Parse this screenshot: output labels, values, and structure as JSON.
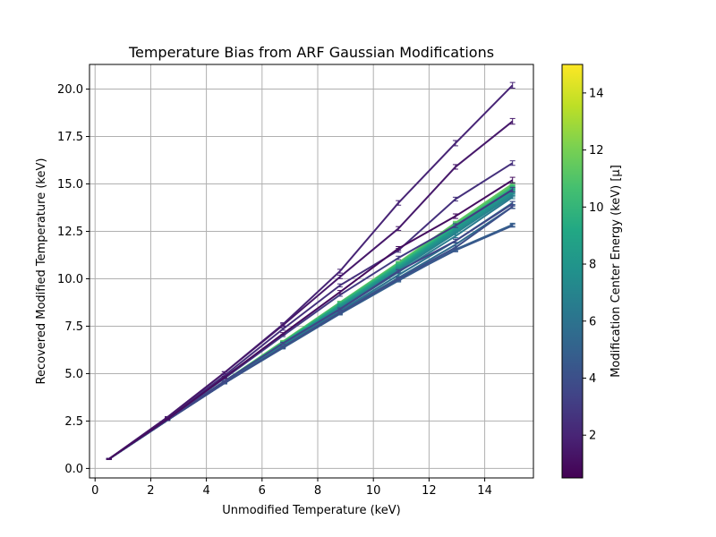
{
  "chart_data": {
    "type": "line",
    "title": "Temperature Bias from ARF Gaussian Modifications",
    "xlabel": "Unmodified Temperature (keV)",
    "ylabel": "Recovered Modified Temperature (keV)",
    "xlim": [
      -0.2,
      15.75
    ],
    "ylim": [
      -0.5,
      21.3
    ],
    "xticks": [
      0,
      2,
      4,
      6,
      8,
      10,
      12,
      14
    ],
    "yticks": [
      0.0,
      2.5,
      5.0,
      7.5,
      10.0,
      12.5,
      15.0,
      17.5,
      20.0
    ],
    "grid": true,
    "x": [
      0.5,
      2.6,
      4.65,
      6.75,
      8.8,
      10.9,
      12.95,
      15.0
    ],
    "series": [
      {
        "mu": 1.0,
        "values": [
          0.5,
          2.6,
          4.8,
          7.1,
          9.3,
          11.6,
          13.3,
          15.2
        ],
        "err": [
          0.02,
          0.03,
          0.04,
          0.06,
          0.08,
          0.1,
          0.12,
          0.15
        ]
      },
      {
        "mu": 1.5,
        "values": [
          0.5,
          2.7,
          5.05,
          7.55,
          10.1,
          12.65,
          15.9,
          18.3
        ],
        "err": [
          0.02,
          0.03,
          0.05,
          0.07,
          0.09,
          0.1,
          0.12,
          0.15
        ]
      },
      {
        "mu": 2.0,
        "values": [
          0.5,
          2.7,
          5.05,
          7.6,
          10.4,
          14.0,
          17.15,
          20.2
        ],
        "err": [
          0.02,
          0.03,
          0.05,
          0.08,
          0.1,
          0.12,
          0.14,
          0.15
        ]
      },
      {
        "mu": 2.5,
        "values": [
          0.5,
          2.65,
          4.9,
          7.35,
          9.65,
          11.5,
          14.2,
          16.1
        ],
        "err": [
          0.02,
          0.03,
          0.04,
          0.06,
          0.08,
          0.1,
          0.1,
          0.12
        ]
      },
      {
        "mu": 3.0,
        "values": [
          0.5,
          2.6,
          4.75,
          7.0,
          9.15,
          11.1,
          12.8,
          14.7
        ],
        "err": [
          0.02,
          0.03,
          0.04,
          0.05,
          0.07,
          0.09,
          0.1,
          0.12
        ]
      },
      {
        "mu": 3.5,
        "values": [
          0.5,
          2.55,
          4.6,
          6.6,
          8.4,
          10.4,
          12.0,
          13.95
        ],
        "err": [
          0.02,
          0.03,
          0.04,
          0.05,
          0.06,
          0.08,
          0.1,
          0.12
        ]
      },
      {
        "mu": 4.0,
        "values": [
          0.5,
          2.55,
          4.5,
          6.4,
          8.2,
          10.0,
          11.65,
          13.8
        ],
        "err": [
          0.02,
          0.03,
          0.04,
          0.05,
          0.06,
          0.07,
          0.08,
          0.1
        ]
      },
      {
        "mu": 4.5,
        "values": [
          0.5,
          2.55,
          4.5,
          6.4,
          8.2,
          9.95,
          11.5,
          12.8
        ],
        "err": [
          0.02,
          0.03,
          0.04,
          0.05,
          0.06,
          0.07,
          0.08,
          0.08
        ]
      },
      {
        "mu": 5.0,
        "values": [
          0.5,
          2.55,
          4.5,
          6.35,
          8.15,
          9.9,
          11.55,
          12.85
        ],
        "err": [
          0.02,
          0.03,
          0.04,
          0.05,
          0.06,
          0.07,
          0.08,
          0.08
        ]
      },
      {
        "mu": 5.5,
        "values": [
          0.5,
          2.55,
          4.5,
          6.4,
          8.25,
          10.05,
          11.8,
          13.8
        ],
        "err": [
          0.02,
          0.03,
          0.04,
          0.05,
          0.06,
          0.07,
          0.08,
          0.08
        ]
      },
      {
        "mu": 6.0,
        "values": [
          0.5,
          2.55,
          4.5,
          6.4,
          8.3,
          10.2,
          12.0,
          14.0
        ],
        "err": [
          0.02,
          0.03,
          0.04,
          0.05,
          0.06,
          0.07,
          0.08,
          0.08
        ]
      },
      {
        "mu": 6.5,
        "values": [
          0.5,
          2.55,
          4.5,
          6.45,
          8.4,
          10.35,
          12.25,
          14.3
        ],
        "err": [
          0.02,
          0.03,
          0.04,
          0.05,
          0.06,
          0.07,
          0.08,
          0.08
        ]
      },
      {
        "mu": 7.0,
        "values": [
          0.5,
          2.55,
          4.55,
          6.5,
          8.45,
          10.45,
          12.4,
          14.4
        ],
        "err": [
          0.02,
          0.03,
          0.04,
          0.05,
          0.06,
          0.07,
          0.08,
          0.08
        ]
      },
      {
        "mu": 7.5,
        "values": [
          0.5,
          2.55,
          4.55,
          6.5,
          8.5,
          10.5,
          12.5,
          14.5
        ],
        "err": [
          0.02,
          0.03,
          0.04,
          0.05,
          0.06,
          0.07,
          0.08,
          0.08
        ]
      },
      {
        "mu": 8.0,
        "values": [
          0.5,
          2.55,
          4.55,
          6.55,
          8.55,
          10.55,
          12.6,
          14.6
        ],
        "err": [
          0.02,
          0.03,
          0.04,
          0.05,
          0.06,
          0.07,
          0.08,
          0.08
        ]
      },
      {
        "mu": 8.5,
        "values": [
          0.5,
          2.55,
          4.6,
          6.6,
          8.6,
          10.6,
          12.65,
          14.65
        ],
        "err": [
          0.02,
          0.03,
          0.04,
          0.05,
          0.06,
          0.07,
          0.08,
          0.08
        ]
      },
      {
        "mu": 9.0,
        "values": [
          0.5,
          2.55,
          4.6,
          6.6,
          8.6,
          10.65,
          12.7,
          14.7
        ],
        "err": [
          0.02,
          0.03,
          0.04,
          0.05,
          0.06,
          0.07,
          0.08,
          0.08
        ]
      },
      {
        "mu": 9.5,
        "values": [
          0.5,
          2.55,
          4.6,
          6.6,
          8.65,
          10.7,
          12.75,
          14.75
        ],
        "err": [
          0.02,
          0.03,
          0.04,
          0.05,
          0.06,
          0.07,
          0.08,
          0.08
        ]
      },
      {
        "mu": 10.0,
        "values": [
          0.5,
          2.55,
          4.6,
          6.65,
          8.7,
          10.75,
          12.8,
          14.8
        ],
        "err": [
          0.02,
          0.03,
          0.04,
          0.05,
          0.06,
          0.07,
          0.08,
          0.08
        ]
      },
      {
        "mu": 10.5,
        "values": [
          0.5,
          2.55,
          4.6,
          6.65,
          8.7,
          10.8,
          12.85,
          14.85
        ],
        "err": [
          0.02,
          0.03,
          0.04,
          0.05,
          0.06,
          0.07,
          0.08,
          0.08
        ]
      },
      {
        "mu": 11.0,
        "values": [
          0.5,
          2.55,
          4.6,
          6.65,
          8.75,
          10.8,
          12.9,
          14.9
        ],
        "err": [
          0.02,
          0.03,
          0.04,
          0.05,
          0.06,
          0.07,
          0.08,
          0.08
        ]
      },
      {
        "mu": 11.5,
        "values": [
          0.5,
          2.55,
          4.6,
          6.7,
          8.75,
          10.85,
          12.95,
          15.0
        ],
        "err": [
          0.02,
          0.03,
          0.04,
          0.05,
          0.06,
          0.07,
          0.08,
          0.08
        ]
      }
    ],
    "colorbar": {
      "label": "Modification Center Energy (keV) [μ]",
      "min": 0.5,
      "max": 15.0,
      "ticks": [
        2,
        4,
        6,
        8,
        10,
        12,
        14
      ],
      "colormap": "viridis"
    }
  }
}
